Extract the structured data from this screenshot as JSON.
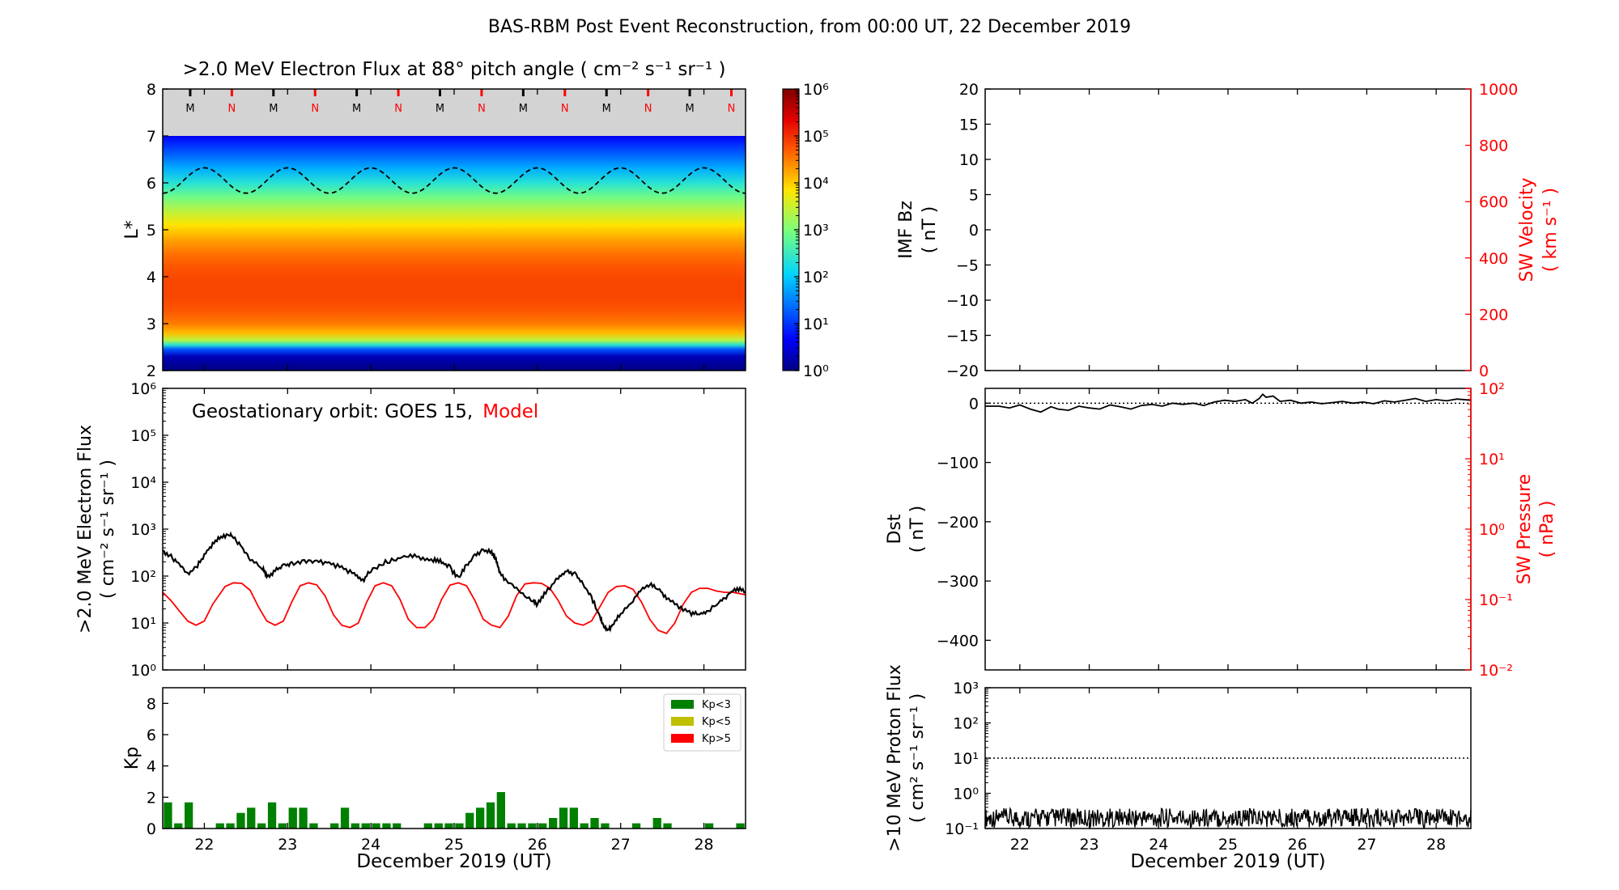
{
  "figure": {
    "suptitle": "BAS-RBM Post Event Reconstruction, from 00:00 UT, 22 December 2019",
    "xlabel": "December 2019 (UT)"
  },
  "colors": {
    "axes": "#000000",
    "red": "#ff0000",
    "grey": "#d3d3d3",
    "kp_low": "#008000",
    "kp_mid": "#bfbf00",
    "kp_high": "#ff0000"
  },
  "chart_data": [
    {
      "id": "flux_lstar_heatmap",
      "type": "heatmap",
      "title": ">2.0 MeV Electron Flux at 88° pitch angle ( cm⁻² s⁻¹ sr⁻¹ )",
      "ylabel": "L*",
      "xlim": [
        21.5,
        28.5
      ],
      "ylim": [
        2,
        8
      ],
      "yticks": [
        2,
        3,
        4,
        5,
        6,
        7,
        8
      ],
      "xticks": [
        22,
        23,
        24,
        25,
        26,
        27,
        28
      ],
      "colorbar": {
        "scale": "log",
        "range": [
          1,
          1000000
        ],
        "tick_labels": [
          "10⁰",
          "10¹",
          "10²",
          "10³",
          "10⁴",
          "10⁵",
          "10⁶"
        ]
      },
      "profile_l": [
        2.0,
        2.3,
        2.45,
        2.55,
        2.65,
        2.8,
        3.0,
        3.3,
        3.6,
        3.9,
        4.2,
        4.5,
        4.8,
        5.1,
        5.4,
        5.7,
        6.0,
        6.3,
        6.6,
        6.85,
        7.0
      ],
      "profile_log10_flux": [
        0.0,
        0.3,
        1.2,
        2.4,
        3.4,
        4.1,
        4.5,
        4.75,
        4.85,
        4.85,
        4.75,
        4.55,
        4.25,
        3.85,
        3.4,
        2.9,
        2.35,
        1.8,
        1.3,
        0.9,
        0.6
      ],
      "mask_above_l": 7.0,
      "orbit_curve": {
        "style": "dashed",
        "mean_l": 6.05,
        "amplitude": 0.27,
        "period_days": 1.0,
        "peak_phase_day": 22.0
      },
      "mn_markers": {
        "labels": [
          "M",
          "N",
          "M",
          "N",
          "M",
          "N",
          "M",
          "N",
          "M",
          "N",
          "M",
          "N",
          "M",
          "N"
        ],
        "label_colors": [
          "black",
          "red"
        ],
        "start_day": 21.83,
        "spacing_days": 0.5
      }
    },
    {
      "id": "geo_flux",
      "type": "line",
      "annotation": {
        "prefix": "Geostationary orbit:   GOES 15,",
        "model": "Model"
      },
      "ylabel_lines": [
        ">2.0 MeV Electron Flux",
        "( cm⁻² s⁻¹ sr⁻¹ )"
      ],
      "yscale": "log",
      "ylim": [
        1,
        1000000
      ],
      "ytick_labels": [
        "10⁰",
        "10¹",
        "10²",
        "10³",
        "10⁴",
        "10⁵",
        "10⁶"
      ],
      "xlim": [
        21.5,
        28.5
      ],
      "series": [
        {
          "name": "GOES 15",
          "color": "#000000",
          "x": [
            21.5,
            21.6,
            21.7,
            21.8,
            21.9,
            22.0,
            22.1,
            22.2,
            22.3,
            22.35,
            22.45,
            22.55,
            22.7,
            22.75,
            22.85,
            22.95,
            23.05,
            23.2,
            23.35,
            23.5,
            23.65,
            23.8,
            23.9,
            24.0,
            24.15,
            24.3,
            24.45,
            24.6,
            24.75,
            24.85,
            24.95,
            25.05,
            25.15,
            25.25,
            25.35,
            25.45,
            25.5,
            25.55,
            25.65,
            25.8,
            25.95,
            26.0,
            26.1,
            26.25,
            26.35,
            26.45,
            26.55,
            26.65,
            26.75,
            26.8,
            26.85,
            26.9,
            27.0,
            27.15,
            27.25,
            27.35,
            27.45,
            27.55,
            27.7,
            27.85,
            27.95,
            28.05,
            28.2,
            28.3,
            28.4,
            28.5
          ],
          "y": [
            350,
            260,
            180,
            110,
            150,
            280,
            480,
            680,
            780,
            680,
            420,
            220,
            150,
            95,
            130,
            170,
            180,
            210,
            200,
            190,
            150,
            110,
            80,
            130,
            190,
            230,
            270,
            250,
            220,
            200,
            150,
            90,
            170,
            280,
            360,
            320,
            230,
            110,
            75,
            45,
            30,
            25,
            45,
            95,
            130,
            110,
            65,
            35,
            14,
            8,
            7,
            9,
            16,
            30,
            55,
            65,
            55,
            35,
            22,
            16,
            15,
            18,
            28,
            42,
            55,
            45
          ]
        },
        {
          "name": "Model",
          "color": "#ff0000",
          "x": [
            21.5,
            21.6,
            21.7,
            21.8,
            21.9,
            22.0,
            22.1,
            22.25,
            22.35,
            22.45,
            22.55,
            22.65,
            22.75,
            22.85,
            22.95,
            23.05,
            23.15,
            23.25,
            23.35,
            23.45,
            23.55,
            23.65,
            23.75,
            23.85,
            23.95,
            24.05,
            24.15,
            24.25,
            24.35,
            24.45,
            24.55,
            24.65,
            24.75,
            24.85,
            24.95,
            25.05,
            25.15,
            25.25,
            25.35,
            25.45,
            25.55,
            25.65,
            25.75,
            25.85,
            25.95,
            26.05,
            26.15,
            26.25,
            26.35,
            26.45,
            26.55,
            26.65,
            26.75,
            26.85,
            26.95,
            27.05,
            27.15,
            27.25,
            27.35,
            27.45,
            27.55,
            27.65,
            27.75,
            27.85,
            27.95,
            28.05,
            28.15,
            28.25,
            28.35,
            28.5
          ],
          "y": [
            45,
            30,
            18,
            11,
            9,
            11,
            25,
            60,
            72,
            70,
            50,
            22,
            11,
            9,
            11,
            28,
            62,
            72,
            65,
            38,
            15,
            9,
            8,
            10,
            28,
            62,
            72,
            62,
            32,
            12,
            8,
            8,
            12,
            32,
            64,
            72,
            62,
            30,
            12,
            9,
            8,
            14,
            38,
            68,
            72,
            70,
            55,
            30,
            14,
            10,
            9,
            11,
            22,
            45,
            60,
            62,
            52,
            28,
            12,
            7,
            6,
            10,
            25,
            45,
            55,
            55,
            48,
            45,
            45,
            40
          ]
        }
      ]
    },
    {
      "id": "kp",
      "type": "bar",
      "ylabel": "Kp",
      "ylim": [
        0,
        9
      ],
      "yticks": [
        0,
        2,
        4,
        6,
        8
      ],
      "xlim": [
        21.5,
        28.5
      ],
      "xticks": [
        22,
        23,
        24,
        25,
        26,
        27,
        28
      ],
      "bar_width_days": 0.1,
      "legend": {
        "placement": "top-right",
        "entries": [
          {
            "label": "Kp<3",
            "color": "#008000"
          },
          {
            "label": "Kp<5",
            "color": "#bfbf00"
          },
          {
            "label": "Kp>5",
            "color": "#ff0000"
          }
        ]
      },
      "x": [
        21.5625,
        21.6875,
        21.8125,
        21.9375,
        22.0625,
        22.1875,
        22.3125,
        22.4375,
        22.5625,
        22.6875,
        22.8125,
        22.9375,
        23.0625,
        23.1875,
        23.3125,
        23.4375,
        23.5625,
        23.6875,
        23.8125,
        23.9375,
        24.0625,
        24.1875,
        24.3125,
        24.4375,
        24.5625,
        24.6875,
        24.8125,
        24.9375,
        25.0625,
        25.1875,
        25.3125,
        25.4375,
        25.5625,
        25.6875,
        25.8125,
        25.9375,
        26.0625,
        26.1875,
        26.3125,
        26.4375,
        26.5625,
        26.6875,
        26.8125,
        26.9375,
        27.0625,
        27.1875,
        27.3125,
        27.4375,
        27.5625,
        27.6875,
        27.8125,
        27.9375,
        28.0625,
        28.1875,
        28.3125,
        28.4375
      ],
      "values": [
        1.67,
        0.33,
        1.67,
        0,
        0,
        0.33,
        0.33,
        1.0,
        1.33,
        0.33,
        1.67,
        0.33,
        1.33,
        1.33,
        0.33,
        0,
        0.33,
        1.33,
        0.33,
        0.33,
        0.33,
        0.33,
        0.33,
        0,
        0,
        0.33,
        0.33,
        0.33,
        0.33,
        1.0,
        1.33,
        1.67,
        2.33,
        0.33,
        0.33,
        0.33,
        0.33,
        0.67,
        1.33,
        1.33,
        0.33,
        0.67,
        0.33,
        0,
        0,
        0.33,
        0,
        0.67,
        0.33,
        0,
        0,
        0,
        0.33,
        0,
        0,
        0.33
      ]
    },
    {
      "id": "imf_bz",
      "type": "line",
      "ylabel_lines": [
        "IMF Bz",
        "( nT )"
      ],
      "ylim": [
        -20,
        20
      ],
      "yticks": [
        -20,
        -15,
        -10,
        -5,
        0,
        5,
        10,
        15,
        20
      ],
      "ytick_labels": [
        "−20",
        "−15",
        "−10",
        "−5",
        "0",
        "5",
        "10",
        "15",
        "20"
      ],
      "y2label_lines": [
        "SW Velocity",
        "( km s⁻¹ )"
      ],
      "y2lim": [
        0,
        1000
      ],
      "y2ticks": [
        0,
        200,
        400,
        600,
        800,
        1000
      ],
      "xlim": [
        21.5,
        28.5
      ],
      "series": []
    },
    {
      "id": "dst",
      "type": "line",
      "ylabel_lines": [
        "Dst",
        "( nT )"
      ],
      "ylim": [
        -450,
        25
      ],
      "yticks": [
        0,
        -100,
        -200,
        -300,
        -400
      ],
      "ytick_labels": [
        "0",
        "−100",
        "−200",
        "−300",
        "−400"
      ],
      "y2label_lines": [
        "SW Pressure",
        "( nPa )"
      ],
      "y2scale": "log",
      "y2lim": [
        0.01,
        100
      ],
      "y2tick_labels": [
        "10⁻²",
        "10⁻¹",
        "10⁰",
        "10¹",
        "10²"
      ],
      "xlim": [
        21.5,
        28.5
      ],
      "reference_line": 0,
      "series": [
        {
          "name": "Dst",
          "color": "#000000",
          "x": [
            21.5,
            21.7,
            21.85,
            22.0,
            22.15,
            22.3,
            22.45,
            22.55,
            22.7,
            22.85,
            23.0,
            23.15,
            23.3,
            23.45,
            23.6,
            23.75,
            23.9,
            24.05,
            24.2,
            24.35,
            24.5,
            24.65,
            24.8,
            24.95,
            25.1,
            25.25,
            25.35,
            25.45,
            25.5,
            25.55,
            25.65,
            25.75,
            25.9,
            26.05,
            26.2,
            26.35,
            26.5,
            26.65,
            26.8,
            26.95,
            27.1,
            27.25,
            27.4,
            27.55,
            27.7,
            27.85,
            28.0,
            28.15,
            28.3,
            28.5
          ],
          "y": [
            -5,
            -5,
            -8,
            -3,
            -10,
            -15,
            -6,
            -10,
            -12,
            -5,
            -8,
            -10,
            -3,
            -6,
            -10,
            -4,
            -2,
            -5,
            0,
            -2,
            0,
            -4,
            2,
            5,
            3,
            6,
            0,
            8,
            15,
            10,
            12,
            3,
            5,
            0,
            2,
            -1,
            1,
            3,
            0,
            2,
            -1,
            4,
            2,
            5,
            8,
            3,
            6,
            4,
            7,
            5
          ]
        }
      ]
    },
    {
      "id": "proton_flux",
      "type": "line",
      "ylabel_lines": [
        ">10 MeV Proton Flux",
        "( cm² s⁻¹ sr⁻¹ )"
      ],
      "yscale": "log",
      "ylim": [
        0.1,
        1000
      ],
      "ytick_labels": [
        "10⁻¹",
        "10⁰",
        "10¹",
        "10²",
        "10³"
      ],
      "xlim": [
        21.5,
        28.5
      ],
      "xticks": [
        22,
        23,
        24,
        25,
        26,
        27,
        28
      ],
      "reference_line": 10,
      "series": [
        {
          "name": ">10 MeV Proton Flux",
          "color": "#000000",
          "x": [
            21.5,
            28.5
          ],
          "y": [
            0.2,
            0.2
          ]
        }
      ]
    }
  ]
}
